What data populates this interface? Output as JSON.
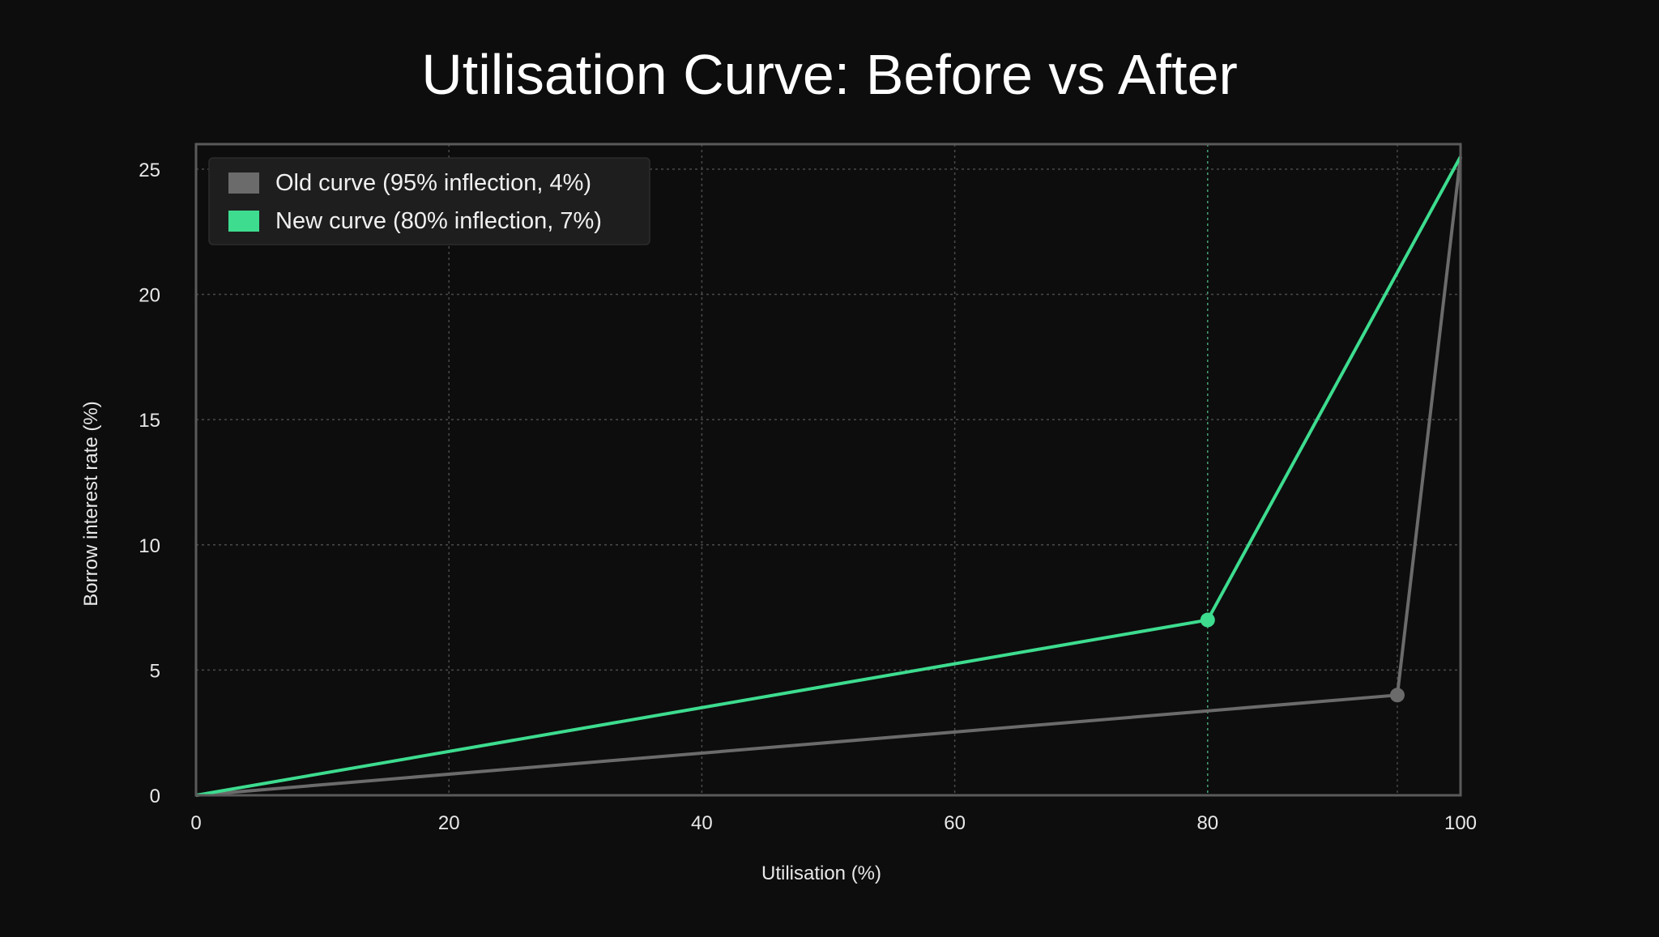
{
  "chart_data": {
    "type": "line",
    "title": "Utilisation Curve: Before vs After",
    "xlabel": "Utilisation (%)",
    "ylabel": "Borrow interest rate (%)",
    "xlim": [
      0,
      100
    ],
    "ylim": [
      0,
      26
    ],
    "x_ticks": [
      0,
      20,
      40,
      60,
      80,
      100
    ],
    "y_ticks": [
      0,
      5,
      10,
      15,
      20,
      25
    ],
    "grid": true,
    "legend_position": "top-left",
    "series": [
      {
        "name": "Old curve (95% inflection, 4%)",
        "color": "#6b6b6b",
        "x": [
          0,
          95,
          100
        ],
        "y": [
          0,
          4,
          25.5
        ],
        "inflection": {
          "x": 95,
          "y": 4
        }
      },
      {
        "name": "New curve (80% inflection, 7%)",
        "color": "#3ddc8f",
        "x": [
          0,
          80,
          100
        ],
        "y": [
          0,
          7,
          25.5
        ],
        "inflection": {
          "x": 80,
          "y": 7
        }
      }
    ],
    "colors": {
      "background": "#0d0d0d",
      "frame": "#5a5a5a",
      "grid": "#4a4a4a",
      "legend_bg": "#1e1e1e"
    }
  }
}
